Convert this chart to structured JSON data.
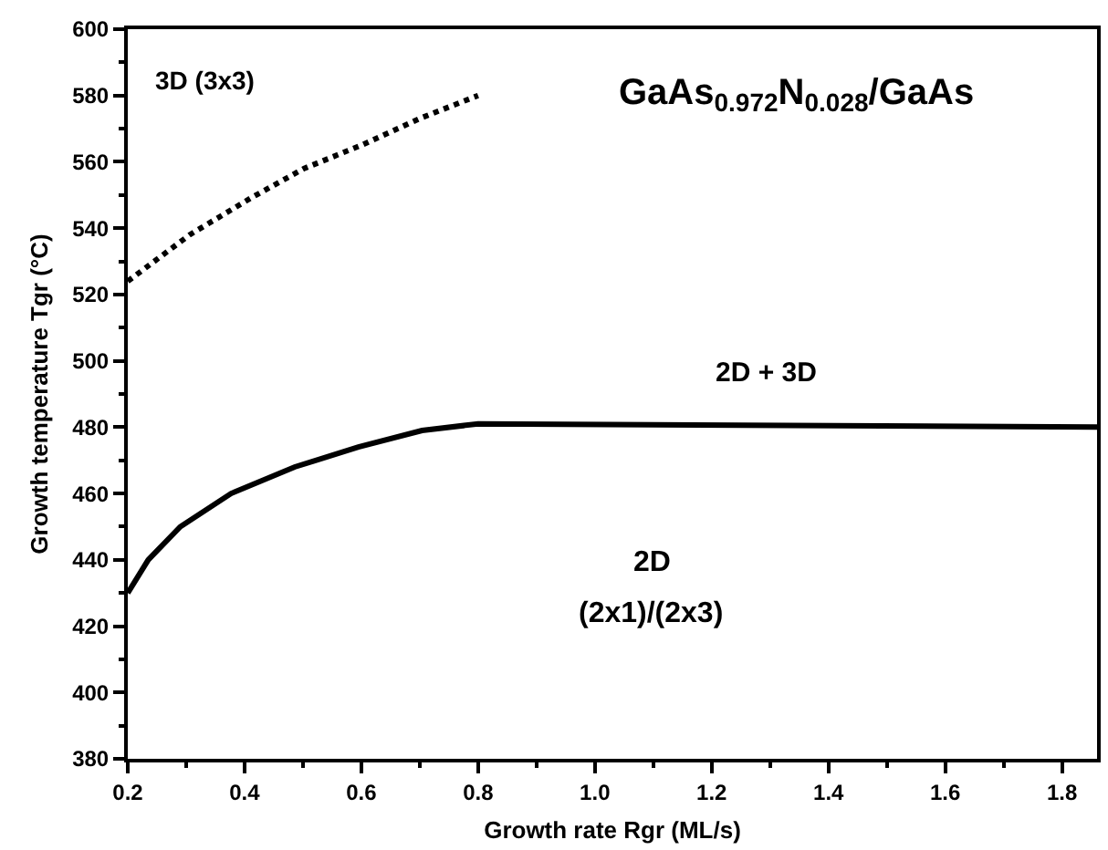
{
  "chart_data": {
    "type": "line",
    "xlabel": "Growth rate Rgr (ML/s)",
    "ylabel": "Growth temperature Tgr (°C)",
    "xlim": [
      0.2,
      1.86
    ],
    "xticks": [
      0.2,
      0.4,
      0.6,
      0.8,
      {
        "value": 1.0,
        "label": "1.0"
      },
      1.2,
      1.4,
      1.6,
      1.8
    ],
    "ylim": [
      380,
      600
    ],
    "yticks": [
      380,
      400,
      420,
      440,
      460,
      480,
      500,
      520,
      540,
      560,
      580,
      600
    ],
    "grid": false,
    "marker": "none",
    "series": [
      {
        "color": "#000000",
        "line_style": "solid",
        "x": [
          0.2,
          0.235,
          0.29,
          0.377,
          0.486,
          0.595,
          0.704,
          0.8,
          1.86
        ],
        "values": [
          430,
          440,
          450,
          460,
          468,
          474,
          479,
          481,
          480
        ]
      },
      {
        "color": "#000000",
        "line_style": "dotted",
        "x": [
          0.2,
          0.306,
          0.41,
          0.502,
          0.6,
          0.699,
          0.8
        ],
        "values": [
          524,
          538,
          549,
          558,
          565,
          573,
          580
        ]
      }
    ],
    "annotations": [
      "3D (3x3)",
      "GaAs$_{0.972}$N$_{0.028}$/GaAs",
      "2D + 3D",
      "2D",
      "(2x1)/(2x3)"
    ]
  }
}
